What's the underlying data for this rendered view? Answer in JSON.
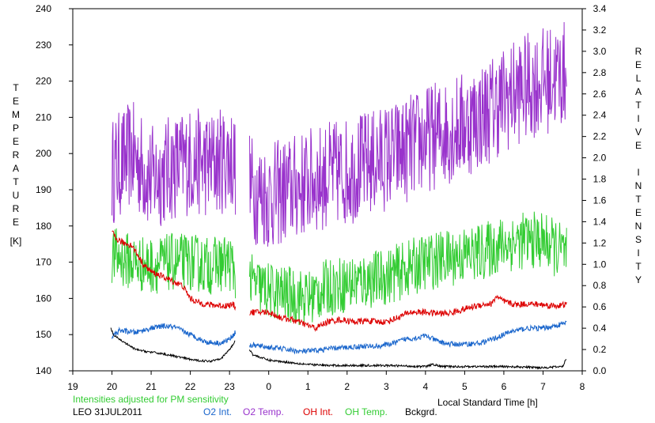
{
  "chart_data": {
    "type": "line",
    "xlabel": "Local Standard Time [h]",
    "ylabel_left": "TEMPERATURE",
    "ylabel_left_unit": "[K]",
    "ylabel_right": "RELATIVE INTENSITY",
    "x_ticks": [
      "19",
      "21",
      "22",
      "23",
      "0",
      "1",
      "2",
      "3",
      "4",
      "5",
      "6",
      "7",
      "8",
      "20"
    ],
    "x_tick_values": [
      19,
      21,
      22,
      23,
      24,
      25,
      26,
      27,
      28,
      29,
      30,
      31,
      32,
      20
    ],
    "xlim": [
      19,
      32
    ],
    "y_left_ticks": [
      140,
      150,
      160,
      170,
      180,
      190,
      200,
      210,
      220,
      230,
      240
    ],
    "ylim_left": [
      140,
      240
    ],
    "y_right_ticks": [
      "0.0",
      "0.2",
      "0.4",
      "0.6",
      "0.8",
      "1.0",
      "1.2",
      "1.4",
      "1.6",
      "1.8",
      "2.0",
      "2.2",
      "2.4",
      "2.6",
      "2.8",
      "3.0",
      "3.2",
      "3.4"
    ],
    "ylim_right": [
      0,
      3.4
    ],
    "gap": [
      23.15,
      23.5
    ],
    "series": [
      {
        "name": "O2 Temp.",
        "axis": "left",
        "color": "#9933cc",
        "noise": 15,
        "values": [
          [
            20.0,
            195
          ],
          [
            20.5,
            200
          ],
          [
            21.0,
            193
          ],
          [
            21.5,
            196
          ],
          [
            22.0,
            198
          ],
          [
            22.5,
            197
          ],
          [
            23.0,
            199
          ],
          [
            23.1,
            198
          ],
          [
            23.6,
            190
          ],
          [
            24.0,
            188
          ],
          [
            24.5,
            190
          ],
          [
            25.0,
            192
          ],
          [
            25.5,
            194
          ],
          [
            26.0,
            195
          ],
          [
            26.5,
            197
          ],
          [
            27.0,
            199
          ],
          [
            27.5,
            201
          ],
          [
            28.0,
            204
          ],
          [
            28.5,
            206
          ],
          [
            29.0,
            208
          ],
          [
            29.5,
            211
          ],
          [
            30.0,
            215
          ],
          [
            30.5,
            218
          ],
          [
            31.0,
            220
          ],
          [
            31.6,
            222
          ]
        ]
      },
      {
        "name": "OH Temp.",
        "axis": "left",
        "color": "#33cc33",
        "noise": 8,
        "values": [
          [
            20.0,
            172
          ],
          [
            20.5,
            170
          ],
          [
            21.0,
            169
          ],
          [
            21.5,
            170
          ],
          [
            22.0,
            170
          ],
          [
            22.5,
            169
          ],
          [
            23.0,
            170
          ],
          [
            23.1,
            168
          ],
          [
            23.6,
            164
          ],
          [
            24.0,
            162
          ],
          [
            24.5,
            161
          ],
          [
            25.0,
            160
          ],
          [
            25.5,
            163
          ],
          [
            26.0,
            164
          ],
          [
            26.5,
            165
          ],
          [
            27.0,
            166
          ],
          [
            27.5,
            168
          ],
          [
            28.0,
            170
          ],
          [
            28.5,
            171
          ],
          [
            29.0,
            172
          ],
          [
            29.5,
            173
          ],
          [
            30.0,
            175
          ],
          [
            30.5,
            176
          ],
          [
            31.0,
            176
          ],
          [
            31.6,
            172
          ]
        ]
      },
      {
        "name": "OH Int.",
        "axis": "right",
        "color": "#dd0000",
        "noise": 0.03,
        "values": [
          [
            20.0,
            1.3
          ],
          [
            20.1,
            1.24
          ],
          [
            20.3,
            1.2
          ],
          [
            20.5,
            1.18
          ],
          [
            20.8,
            1.0
          ],
          [
            21.0,
            0.93
          ],
          [
            21.2,
            0.9
          ],
          [
            21.5,
            0.85
          ],
          [
            21.8,
            0.8
          ],
          [
            22.0,
            0.68
          ],
          [
            22.2,
            0.64
          ],
          [
            22.5,
            0.62
          ],
          [
            22.8,
            0.61
          ],
          [
            23.1,
            0.62
          ],
          [
            23.2,
            0.57
          ],
          [
            23.5,
            0.55
          ],
          [
            24.0,
            0.55
          ],
          [
            24.3,
            0.5
          ],
          [
            24.6,
            0.48
          ],
          [
            24.9,
            0.44
          ],
          [
            25.2,
            0.4
          ],
          [
            25.5,
            0.46
          ],
          [
            25.8,
            0.48
          ],
          [
            26.2,
            0.46
          ],
          [
            26.5,
            0.47
          ],
          [
            26.8,
            0.46
          ],
          [
            27.0,
            0.46
          ],
          [
            27.3,
            0.5
          ],
          [
            27.6,
            0.55
          ],
          [
            28.0,
            0.55
          ],
          [
            28.3,
            0.54
          ],
          [
            28.6,
            0.54
          ],
          [
            29.0,
            0.58
          ],
          [
            29.4,
            0.62
          ],
          [
            29.7,
            0.63
          ],
          [
            29.8,
            0.7
          ],
          [
            30.0,
            0.65
          ],
          [
            30.3,
            0.62
          ],
          [
            30.6,
            0.63
          ],
          [
            31.0,
            0.62
          ],
          [
            31.3,
            0.61
          ],
          [
            31.6,
            0.62
          ]
        ]
      },
      {
        "name": "O2 Int.",
        "axis": "right",
        "color": "#1a66cc",
        "noise": 0.025,
        "values": [
          [
            20.0,
            0.32
          ],
          [
            20.2,
            0.38
          ],
          [
            20.6,
            0.36
          ],
          [
            21.0,
            0.4
          ],
          [
            21.3,
            0.42
          ],
          [
            21.6,
            0.41
          ],
          [
            22.0,
            0.34
          ],
          [
            22.4,
            0.27
          ],
          [
            22.8,
            0.26
          ],
          [
            23.0,
            0.3
          ],
          [
            23.15,
            0.36
          ],
          [
            23.3,
            0.22
          ],
          [
            23.6,
            0.24
          ],
          [
            24.0,
            0.22
          ],
          [
            24.3,
            0.21
          ],
          [
            24.8,
            0.18
          ],
          [
            25.2,
            0.19
          ],
          [
            25.6,
            0.21
          ],
          [
            26.0,
            0.22
          ],
          [
            26.4,
            0.23
          ],
          [
            26.8,
            0.23
          ],
          [
            27.2,
            0.26
          ],
          [
            27.5,
            0.3
          ],
          [
            27.8,
            0.31
          ],
          [
            28.0,
            0.33
          ],
          [
            28.3,
            0.28
          ],
          [
            28.6,
            0.25
          ],
          [
            29.0,
            0.25
          ],
          [
            29.4,
            0.26
          ],
          [
            29.8,
            0.31
          ],
          [
            30.2,
            0.37
          ],
          [
            30.6,
            0.4
          ],
          [
            31.0,
            0.4
          ],
          [
            31.3,
            0.42
          ],
          [
            31.6,
            0.45
          ]
        ]
      },
      {
        "name": "Bckgrd.",
        "axis": "right",
        "color": "#000000",
        "noise": 0.01,
        "values": [
          [
            19.97,
            0.4
          ],
          [
            20.05,
            0.33
          ],
          [
            20.3,
            0.27
          ],
          [
            20.6,
            0.2
          ],
          [
            20.9,
            0.18
          ],
          [
            21.3,
            0.16
          ],
          [
            21.7,
            0.13
          ],
          [
            22.1,
            0.1
          ],
          [
            22.5,
            0.09
          ],
          [
            22.8,
            0.12
          ],
          [
            23.0,
            0.2
          ],
          [
            23.15,
            0.28
          ],
          [
            23.25,
            0.4
          ],
          [
            23.35,
            0.3
          ],
          [
            23.6,
            0.15
          ],
          [
            24.0,
            0.1
          ],
          [
            24.5,
            0.08
          ],
          [
            25.0,
            0.06
          ],
          [
            25.5,
            0.05
          ],
          [
            26.0,
            0.05
          ],
          [
            27.0,
            0.05
          ],
          [
            28.0,
            0.04
          ],
          [
            28.2,
            0.06
          ],
          [
            28.4,
            0.04
          ],
          [
            29.0,
            0.04
          ],
          [
            30.0,
            0.04
          ],
          [
            31.0,
            0.03
          ],
          [
            31.5,
            0.04
          ],
          [
            31.6,
            0.12
          ]
        ]
      }
    ],
    "annotation": "Intensities adjusted for PM sensitivity",
    "annotation_color": "#33cc33",
    "station": "LEO  31JUL2011"
  }
}
